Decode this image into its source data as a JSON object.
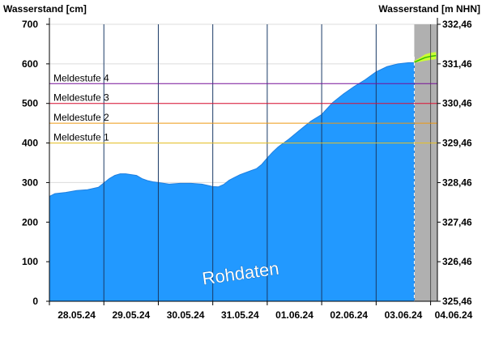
{
  "chart_data": {
    "type": "area",
    "ylabel_left": "Wasserstand [cm]",
    "ylabel_right": "Wasserstand [m NHN]",
    "ylim": [
      0,
      700
    ],
    "yticks_left": [
      "0",
      "100",
      "200",
      "300",
      "400",
      "500",
      "600",
      "700"
    ],
    "yticks_right": [
      "325,46",
      "326,46",
      "327,46",
      "328,46",
      "329,46",
      "330,46",
      "331,46",
      "332,46"
    ],
    "xlim": [
      "28.05.24",
      "04.06.24 03:00"
    ],
    "date_labels": [
      "28.05.24",
      "29.05.24",
      "30.05.24",
      "31.05.24",
      "01.06.24",
      "02.06.24",
      "03.06.24",
      "04.06.24"
    ],
    "grid": true,
    "watermark": "Rohdaten",
    "series": {
      "measured": {
        "color": "#2299ff",
        "x_days": [
          0,
          0.1,
          0.3,
          0.5,
          0.7,
          0.9,
          1.1,
          1.2,
          1.3,
          1.4,
          1.5,
          1.6,
          1.7,
          1.8,
          1.9,
          2.0,
          2.2,
          2.4,
          2.6,
          2.8,
          3.0,
          3.1,
          3.2,
          3.3,
          3.4,
          3.5,
          3.7,
          3.8,
          3.9,
          4.0,
          4.1,
          4.2,
          4.4,
          4.6,
          4.8,
          5.0,
          5.2,
          5.4,
          5.6,
          5.8,
          6.0,
          6.2,
          6.4,
          6.6,
          6.7
        ],
        "y": [
          265,
          272,
          275,
          280,
          282,
          288,
          310,
          318,
          322,
          322,
          320,
          318,
          310,
          305,
          302,
          300,
          296,
          298,
          298,
          296,
          290,
          289,
          295,
          306,
          313,
          320,
          330,
          335,
          346,
          362,
          377,
          390,
          410,
          433,
          455,
          472,
          502,
          524,
          543,
          560,
          580,
          593,
          600,
          603,
          603
        ]
      },
      "forecast_band": {
        "color": "#ccff33",
        "x_days": [
          6.7,
          6.8,
          6.9,
          7.0,
          7.1
        ],
        "upper": [
          608,
          615,
          624,
          628,
          630
        ],
        "lower": [
          603,
          605,
          608,
          610,
          612
        ]
      },
      "forecast_line": {
        "color": "#33bb00",
        "x_days": [
          6.7,
          6.8,
          6.9,
          7.0,
          7.1
        ],
        "y": [
          604,
          610,
          616,
          619,
          621
        ]
      }
    },
    "forecast_start_day": 6.7,
    "reference_levels": [
      {
        "label": "Meldestufe 1",
        "value": 400,
        "color": "#e8c020"
      },
      {
        "label": "Meldestufe 2",
        "value": 450,
        "color": "#ee9911"
      },
      {
        "label": "Meldestufe 3",
        "value": 500,
        "color": "#dd1133"
      },
      {
        "label": "Meldestufe 4",
        "value": 550,
        "color": "#771199"
      }
    ]
  }
}
